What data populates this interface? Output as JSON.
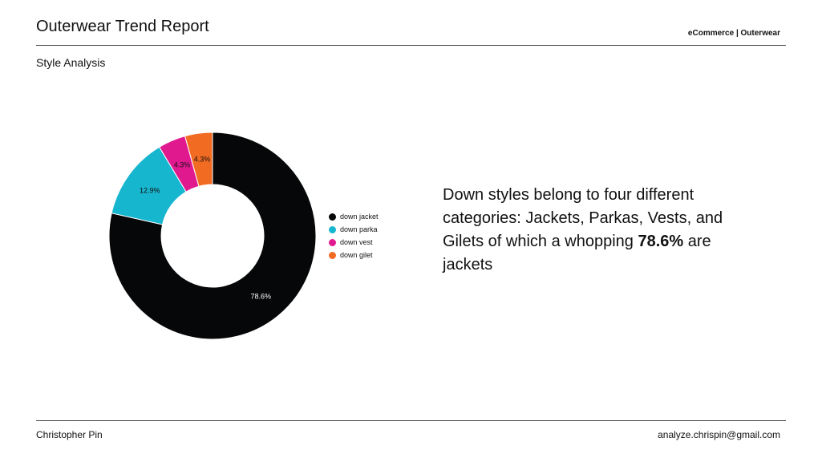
{
  "header": {
    "title": "Outerwear Trend Report",
    "tag": "eCommerce | Outerwear",
    "subtitle": "Style Analysis"
  },
  "insight": {
    "text_before": "Down styles belong to four different categories: Jackets, Parkas, Vests, and Gilets of which a whopping ",
    "highlight": "78.6%",
    "text_after": " are jackets"
  },
  "footer": {
    "author": "Christopher Pin",
    "email": "analyze.chrispin@gmail.com"
  },
  "chart_data": {
    "type": "pie",
    "donut": true,
    "legend_position": "right",
    "categories": [
      "down jacket",
      "down parka",
      "down vest",
      "down gilet"
    ],
    "values": [
      78.6,
      12.9,
      4.3,
      4.3
    ],
    "labels": [
      "78.6%",
      "12.9%",
      "4.3%",
      "4.3%"
    ],
    "colors": [
      "#050708",
      "#17b6cf",
      "#e0198f",
      "#f26b22"
    ],
    "label_colors": [
      "#ffffff",
      "#111111",
      "#111111",
      "#111111"
    ]
  }
}
